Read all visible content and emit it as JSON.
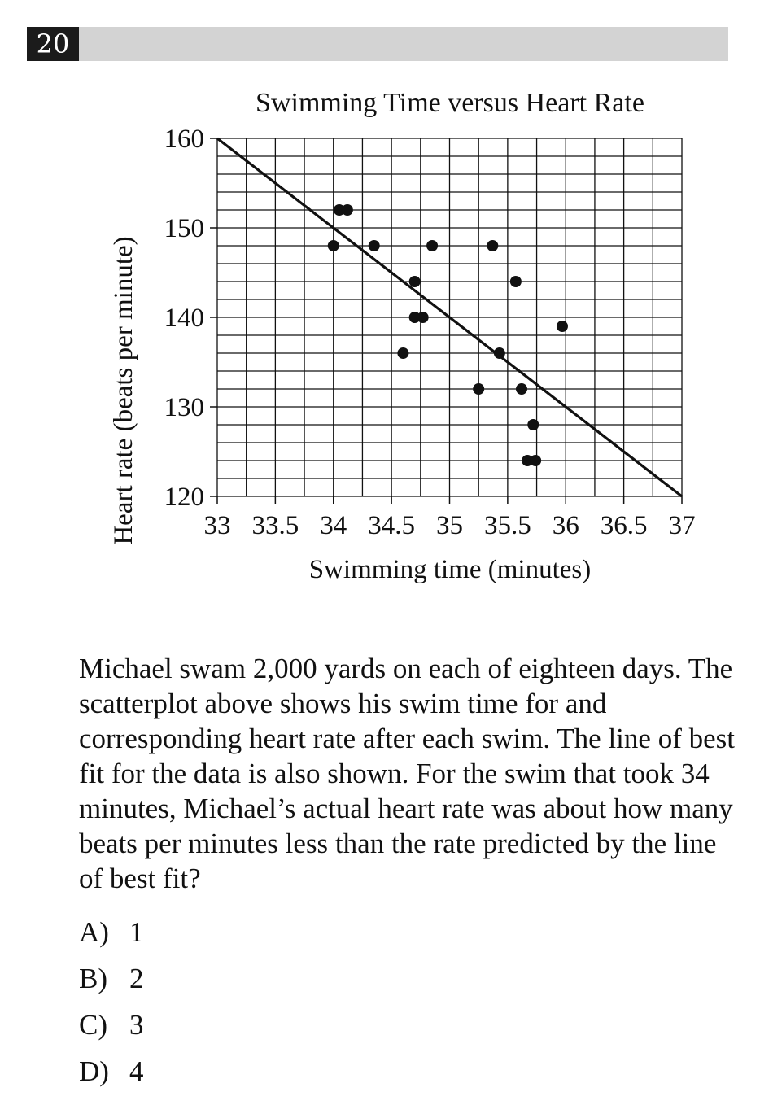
{
  "question": {
    "number": "20",
    "text": "Michael swam 2,000 yards on each of eighteen days. The scatterplot above shows his swim time for and corresponding heart rate after each swim.  The line of best fit for the data is also shown.  For the swim that took 34 minutes, Michael’s actual heart rate was about how many beats per minutes less than the rate predicted by the line of best fit?",
    "choices": [
      {
        "letter": "A)",
        "value": "1"
      },
      {
        "letter": "B)",
        "value": "2"
      },
      {
        "letter": "C)",
        "value": "3"
      },
      {
        "letter": "D)",
        "value": "4"
      }
    ]
  },
  "chart_data": {
    "type": "scatter",
    "title": "Swimming Time versus Heart Rate",
    "xlabel": "Swimming time (minutes)",
    "ylabel": "Heart rate (beats per minute)",
    "xlim": [
      33,
      37
    ],
    "ylim": [
      120,
      160
    ],
    "grid": true,
    "x_minor_step": 0.25,
    "y_minor_step": 2,
    "x_ticks": [
      "33",
      "33.5",
      "34",
      "34.5",
      "35",
      "35.5",
      "36",
      "36.5",
      "37"
    ],
    "y_ticks": [
      "120",
      "130",
      "140",
      "150",
      "160"
    ],
    "series": [
      {
        "points": [
          {
            "x": 34.0,
            "y": 148
          },
          {
            "x": 34.05,
            "y": 152
          },
          {
            "x": 34.12,
            "y": 152
          },
          {
            "x": 34.35,
            "y": 148
          },
          {
            "x": 34.6,
            "y": 136
          },
          {
            "x": 34.7,
            "y": 144
          },
          {
            "x": 34.7,
            "y": 140
          },
          {
            "x": 34.77,
            "y": 140
          },
          {
            "x": 34.85,
            "y": 148
          },
          {
            "x": 35.25,
            "y": 132
          },
          {
            "x": 35.37,
            "y": 148
          },
          {
            "x": 35.43,
            "y": 136
          },
          {
            "x": 35.57,
            "y": 144
          },
          {
            "x": 35.62,
            "y": 132
          },
          {
            "x": 35.67,
            "y": 124
          },
          {
            "x": 35.72,
            "y": 128
          },
          {
            "x": 35.74,
            "y": 124
          },
          {
            "x": 35.97,
            "y": 139
          }
        ]
      }
    ],
    "best_fit_line": {
      "x1": 33,
      "y1": 160,
      "x2": 37,
      "y2": 120
    }
  }
}
